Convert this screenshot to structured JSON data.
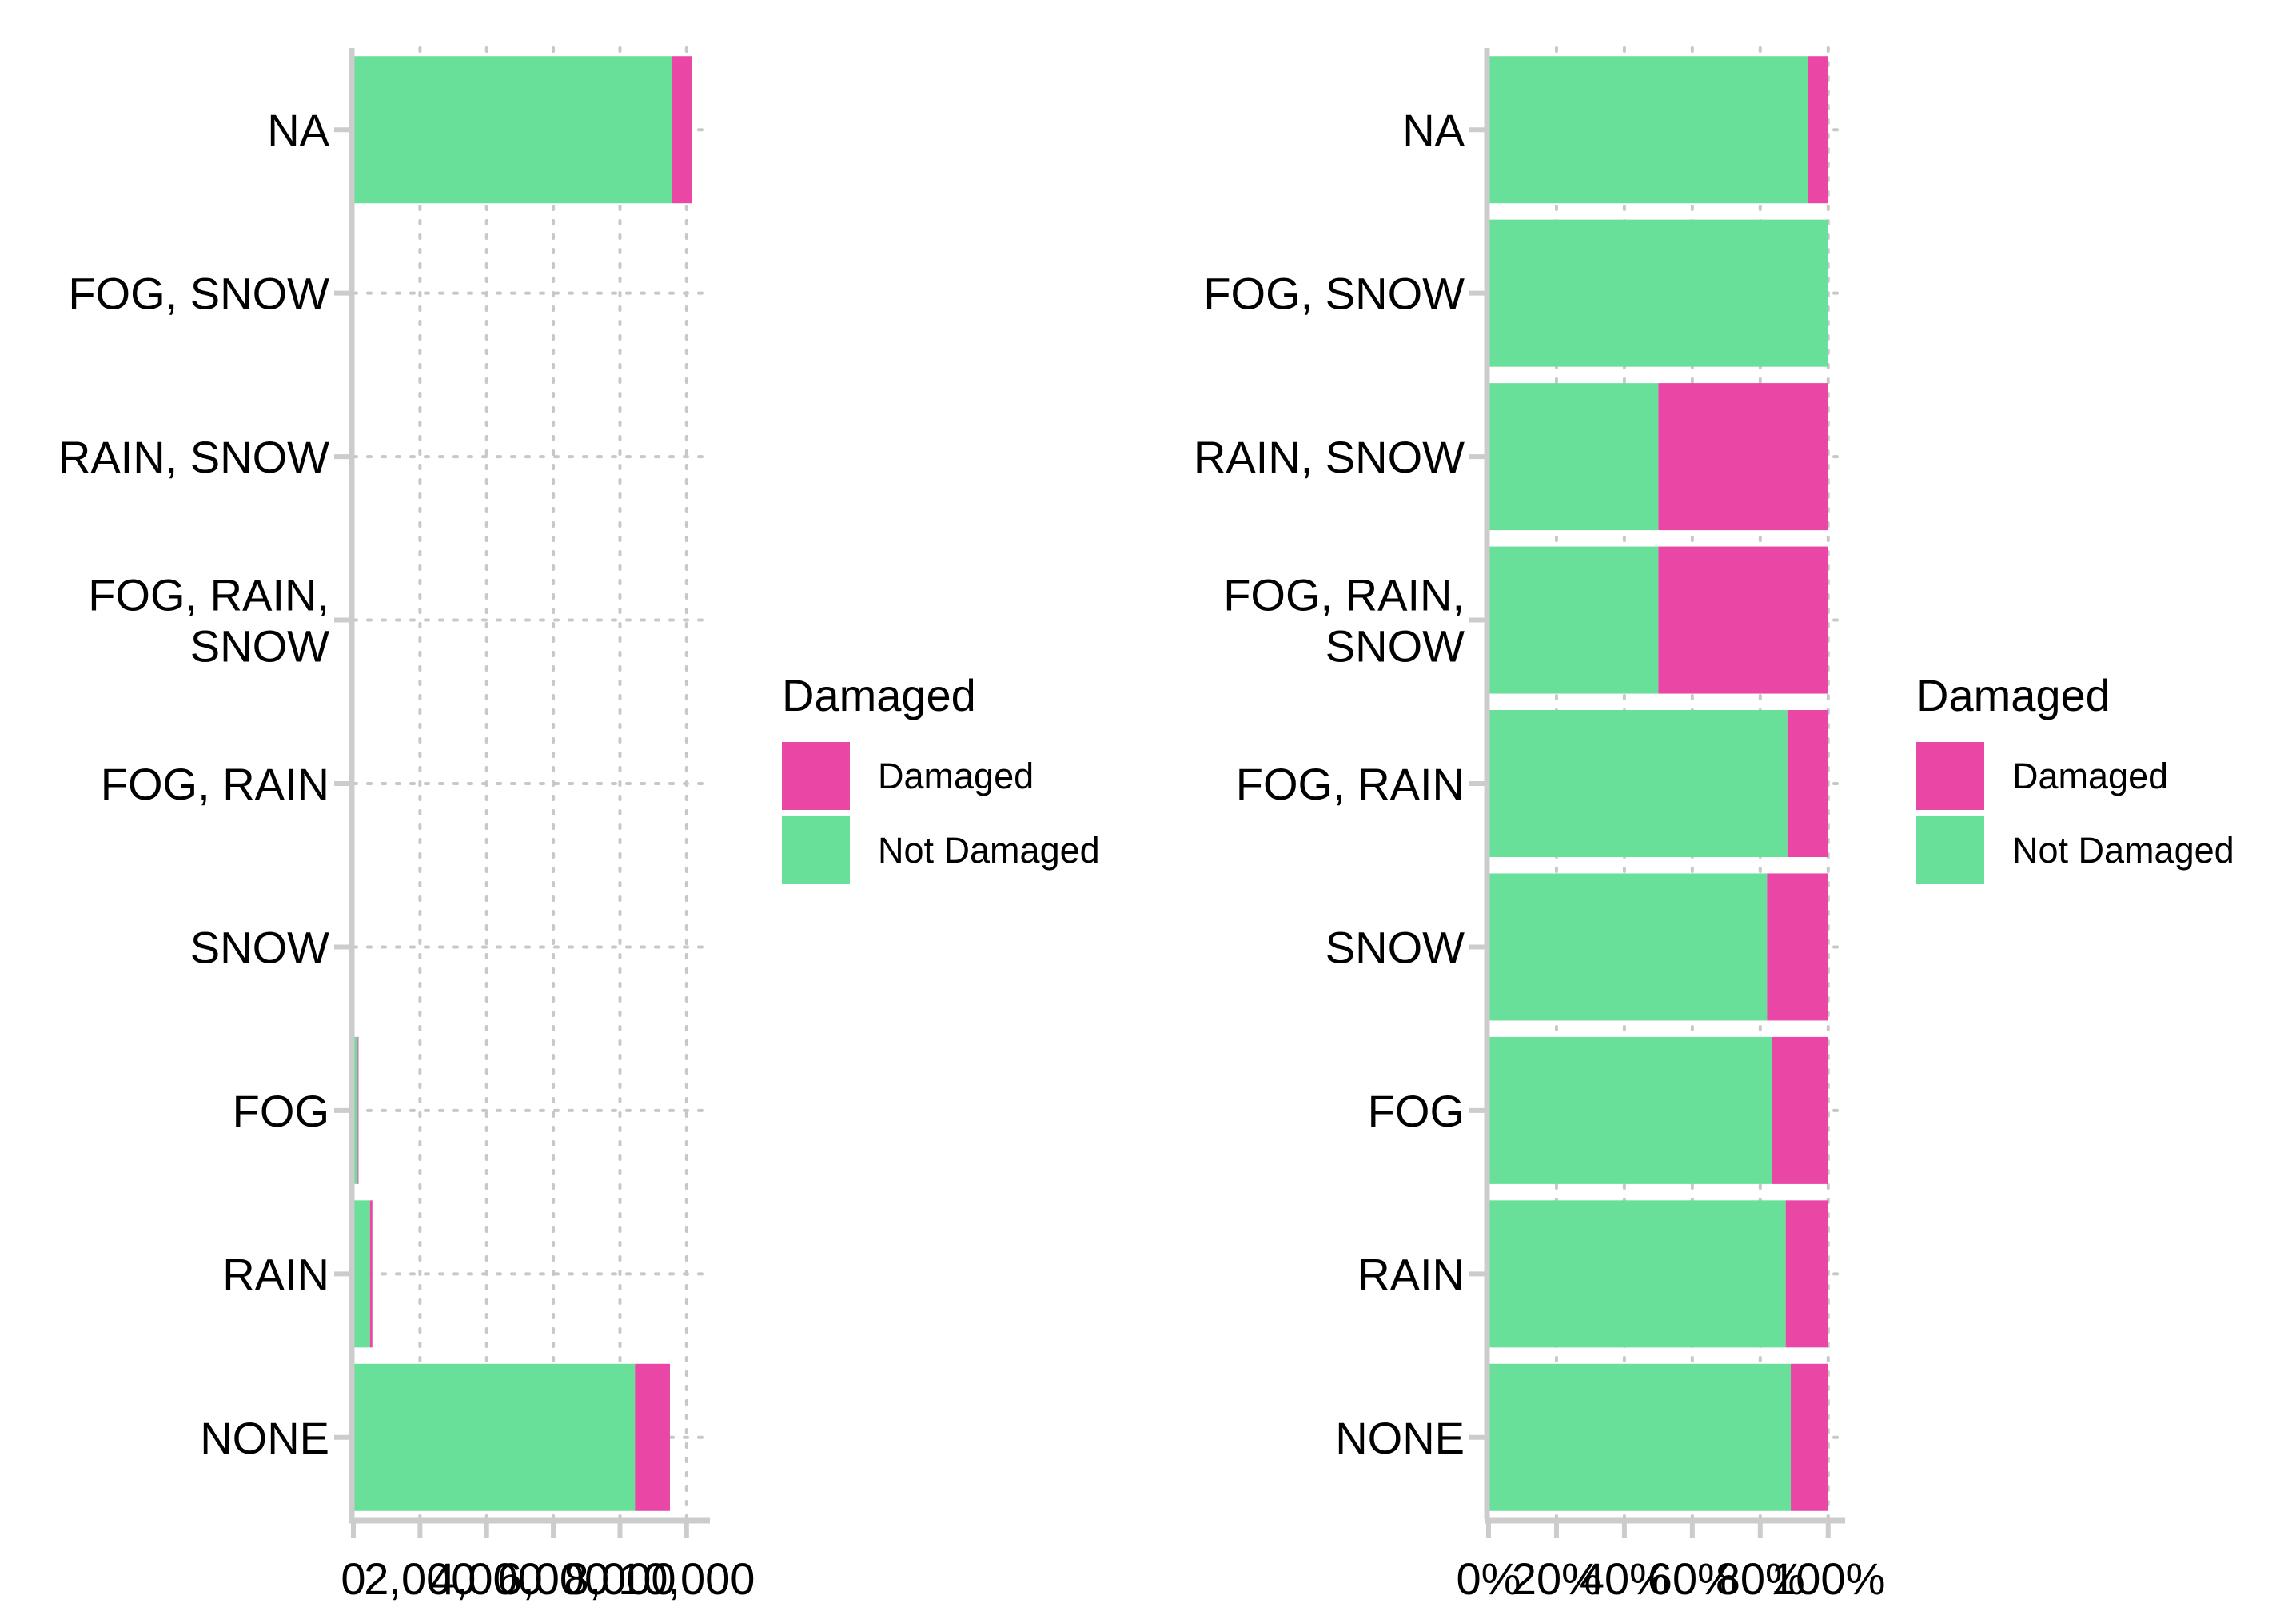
{
  "chart_data": [
    {
      "type": "bar",
      "orientation": "horizontal",
      "stacked": true,
      "categories": [
        "NA",
        "FOG, SNOW",
        "RAIN, SNOW",
        "FOG, RAIN, SNOW",
        "FOG, RAIN",
        "SNOW",
        "FOG",
        "RAIN",
        "NONE"
      ],
      "category_display": [
        [
          "NA"
        ],
        [
          "FOG, SNOW"
        ],
        [
          "RAIN, SNOW"
        ],
        [
          "FOG, RAIN,",
          "SNOW"
        ],
        [
          "FOG, RAIN"
        ],
        [
          "SNOW"
        ],
        [
          "FOG"
        ],
        [
          "RAIN"
        ],
        [
          "NONE"
        ]
      ],
      "series": [
        {
          "name": "Not Damaged",
          "values": [
            9550,
            3,
            1,
            1,
            20,
            15,
            130,
            500,
            8450
          ]
        },
        {
          "name": "Damaged",
          "values": [
            600,
            0,
            1,
            1,
            3,
            3,
            25,
            70,
            1050
          ]
        }
      ],
      "xticks": [
        0,
        2000,
        4000,
        6000,
        8000,
        10000
      ],
      "xtick_labels": [
        "0",
        "2,000",
        "4,000",
        "6,000",
        "8,000",
        "10,000"
      ],
      "xlim": [
        0,
        10700
      ],
      "grid": "dotted",
      "xlabel": "",
      "ylabel": ""
    },
    {
      "type": "bar",
      "orientation": "horizontal",
      "stacked": true,
      "normalized": true,
      "categories": [
        "NA",
        "FOG, SNOW",
        "RAIN, SNOW",
        "FOG, RAIN, SNOW",
        "FOG, RAIN",
        "SNOW",
        "FOG",
        "RAIN",
        "NONE"
      ],
      "category_display": [
        [
          "NA"
        ],
        [
          "FOG, SNOW"
        ],
        [
          "RAIN, SNOW"
        ],
        [
          "FOG, RAIN,",
          "SNOW"
        ],
        [
          "FOG, RAIN"
        ],
        [
          "SNOW"
        ],
        [
          "FOG"
        ],
        [
          "RAIN"
        ],
        [
          "NONE"
        ]
      ],
      "series": [
        {
          "name": "Not Damaged",
          "values": [
            0.94,
            1.0,
            0.5,
            0.5,
            0.88,
            0.82,
            0.835,
            0.875,
            0.89
          ]
        },
        {
          "name": "Damaged",
          "values": [
            0.06,
            0.0,
            0.5,
            0.5,
            0.12,
            0.18,
            0.165,
            0.125,
            0.11
          ]
        }
      ],
      "xticks": [
        0,
        0.2,
        0.4,
        0.6,
        0.8,
        1.0
      ],
      "xtick_labels": [
        "0%",
        "20%",
        "40%",
        "60%",
        "80%",
        "100%"
      ],
      "xlim": [
        0,
        1.05
      ],
      "grid": "dotted",
      "xlabel": "",
      "ylabel": ""
    }
  ],
  "legends": [
    {
      "title": "Damaged",
      "items": [
        {
          "label": "Damaged",
          "color": "#E946A6"
        },
        {
          "label": "Not Damaged",
          "color": "#68E09A"
        }
      ]
    },
    {
      "title": "Damaged",
      "items": [
        {
          "label": "Damaged",
          "color": "#E946A6"
        },
        {
          "label": "Not Damaged",
          "color": "#68E09A"
        }
      ]
    }
  ],
  "colors": {
    "Damaged": "#E946A6",
    "Not Damaged": "#68E09A",
    "axis": "#CCCCCC",
    "grid": "#C8C8C8"
  }
}
